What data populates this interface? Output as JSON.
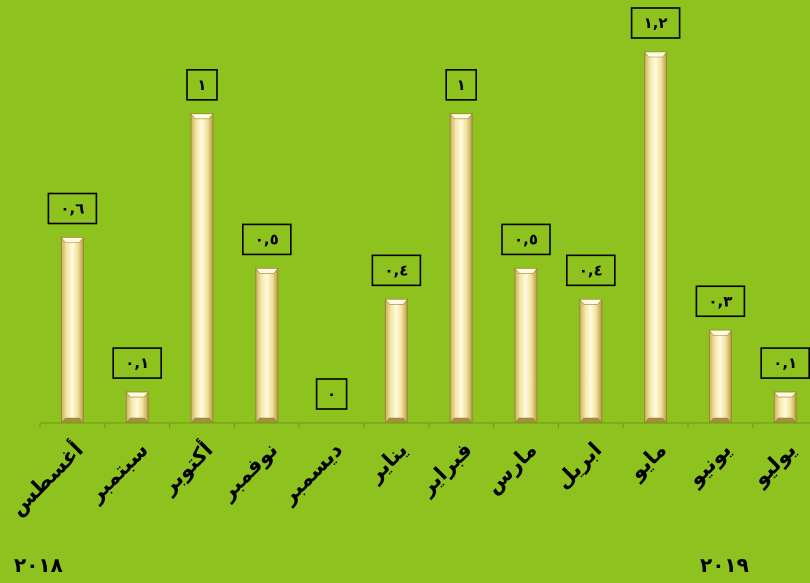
{
  "chart_data": {
    "type": "bar",
    "categories": [
      "أغسطس",
      "سبتمبر",
      "أكتوبر",
      "نوفمبر",
      "ديسمبر",
      "يناير",
      "فبراير",
      "مارس",
      "ابريل",
      "مايو",
      "يونيو",
      "يوليو"
    ],
    "values": [
      0.6,
      0.1,
      1,
      0.5,
      0,
      0.4,
      1,
      0.5,
      0.4,
      1.2,
      0.3,
      0.1
    ],
    "data_labels": [
      "٠,٦",
      "٠,١",
      "١",
      "٠,٥",
      "٠",
      "٠,٤",
      "١",
      "٠,٥",
      "٠,٤",
      "١,٢",
      "٠,٣",
      "٠,١"
    ],
    "ylim": [
      0,
      1.2
    ],
    "grid": false,
    "title": "",
    "xlabel": "",
    "ylabel": ""
  },
  "years": {
    "start": "٢٠١٨",
    "end": "٢٠١٩"
  },
  "colors": {
    "background": "#8dc21f",
    "bar_light": "#fbf3c4",
    "bar_mid": "#e9d68a",
    "bar_dark": "#b9a24e",
    "label_box": "#8dc21f",
    "axis": "#6e9a1a"
  }
}
